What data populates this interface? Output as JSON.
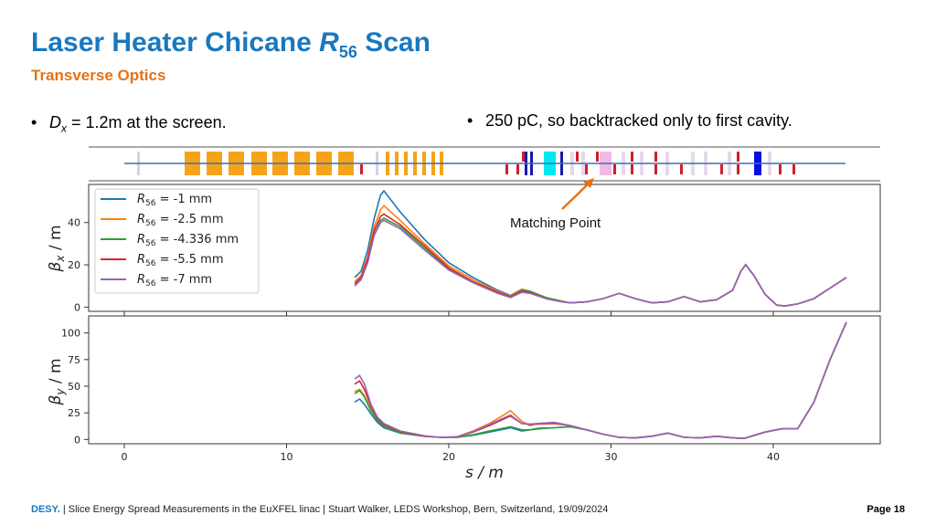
{
  "slide": {
    "title_prefix": "Laser Heater Chicane ",
    "title_var": "R",
    "title_sub": "56",
    "title_suffix": " Scan",
    "subtitle": "Transverse Optics",
    "bullet_left_var": "D",
    "bullet_left_sub": "x",
    "bullet_left_text": " = 1.2m at the screen.",
    "bullet_right_text": "250 pC, so backtracked only to first cavity.",
    "bullet_glyph": "•"
  },
  "footer": {
    "brand": "DESY.",
    "text": " | Slice Energy Spread Measurements in the EuXFEL linac | Stuart Walker, LEDS Workshop, Bern, Switzerland, 19/09/2024",
    "page": "Page 18"
  },
  "colors": {
    "title": "#1a78be",
    "subtitle": "#e2731a",
    "dipole": "#f5a41a",
    "quad_red": "#d0202a",
    "quad_blue": "#1a1aa8",
    "cavity_cyan": "#00e8f0",
    "pink": "#f2b8e6",
    "annotation_arrow": "#e2731a"
  },
  "lattice_icons": [
    "dipole-magnet-icon",
    "quadrupole-icon",
    "cavity-icon"
  ],
  "chart_data": [
    {
      "type": "line",
      "ylabel_symbol": "β",
      "ylabel_sub": "x",
      "ylabel_unit": " / m",
      "xlabel": "",
      "xlim": [
        -2.5,
        46.5
      ],
      "ylim": [
        -2,
        58
      ],
      "yticks": [
        0,
        20,
        40
      ],
      "grid": false,
      "legend_position": "top-left",
      "annotation": "Matching Point",
      "x": [
        14.2,
        14.6,
        15.0,
        15.4,
        15.8,
        16.0,
        17.0,
        18.5,
        20.0,
        21.5,
        23.0,
        23.8,
        24.5,
        25.0,
        26.0,
        27.0,
        27.5,
        28.5,
        29.5,
        30.5,
        31.5,
        32.5,
        33.5,
        34.5,
        35.5,
        36.5,
        37.5,
        38.0,
        38.3,
        38.8,
        39.5,
        40.2,
        40.7,
        41.5,
        42.5,
        43.5,
        44.5
      ],
      "series": [
        {
          "name": "-1 mm",
          "color": "#1f77b4",
          "values": [
            14,
            17,
            27,
            42,
            53,
            55,
            45,
            32,
            21,
            14,
            8,
            5.5,
            8.5,
            7.5,
            4,
            2.5,
            2,
            2.5,
            4,
            6.5,
            4,
            2,
            2.5,
            5,
            2.5,
            3.5,
            8,
            17,
            20,
            15,
            6,
            1,
            0.5,
            1.5,
            4,
            9,
            14
          ]
        },
        {
          "name": "-2.5 mm",
          "color": "#ff7f0e",
          "values": [
            12,
            15,
            24,
            38,
            46,
            48,
            41,
            30,
            19.5,
            13,
            7.5,
            5.2,
            8.5,
            7.5,
            4,
            2.5,
            2,
            2.5,
            4,
            6.5,
            4,
            2,
            2.5,
            5,
            2.5,
            3.5,
            8,
            17,
            20,
            15,
            6,
            1,
            0.5,
            1.5,
            4,
            9,
            14
          ]
        },
        {
          "name": "-4.336 mm",
          "color": "#2ca02c",
          "values": [
            11,
            14,
            22,
            34,
            41,
            42,
            38,
            28,
            18,
            12,
            7,
            5,
            8,
            7.5,
            4.5,
            2.8,
            2,
            2.5,
            4,
            6.5,
            4,
            2,
            2.5,
            5,
            2.5,
            3.5,
            8,
            17,
            20,
            15,
            6,
            1,
            0.5,
            1.5,
            4,
            9,
            14
          ]
        },
        {
          "name": "-5.5 mm",
          "color": "#d62728",
          "values": [
            11,
            14,
            23,
            36,
            43,
            44,
            39,
            29,
            18.5,
            12,
            7,
            4.8,
            7.5,
            7,
            4,
            2.5,
            2,
            2.5,
            4,
            6.5,
            4,
            2,
            2.5,
            5,
            2.5,
            3.5,
            8,
            17,
            20,
            15,
            6,
            1,
            0.5,
            1.5,
            4,
            9,
            14
          ]
        },
        {
          "name": "-7 mm",
          "color": "#9467bd",
          "values": [
            10,
            13,
            21,
            34,
            40,
            41,
            37,
            27,
            17.5,
            11.5,
            6.5,
            4.5,
            7,
            6.5,
            4,
            2.5,
            2,
            2.5,
            4,
            6.5,
            4,
            2,
            2.5,
            5,
            2.5,
            3.5,
            8,
            17,
            20,
            15,
            6,
            1,
            0.5,
            1.5,
            4,
            9,
            14
          ]
        }
      ]
    },
    {
      "type": "line",
      "ylabel_symbol": "β",
      "ylabel_sub": "y",
      "ylabel_unit": " / m",
      "xlabel": "s / m",
      "xlim": [
        -2.5,
        46.5
      ],
      "ylim": [
        -4,
        116
      ],
      "yticks": [
        0,
        25,
        50,
        75,
        100
      ],
      "xticks": [
        0,
        10,
        20,
        30,
        40
      ],
      "grid": false,
      "x": [
        14.2,
        14.5,
        14.8,
        15.2,
        15.6,
        16.0,
        17.0,
        18.5,
        19.5,
        20.5,
        21.5,
        22.5,
        23.5,
        23.8,
        24.5,
        25.0,
        25.5,
        26.5,
        27.5,
        28.5,
        29.5,
        30.5,
        31.5,
        32.5,
        33.5,
        34.5,
        35.5,
        36.5,
        37.5,
        38.2,
        39.5,
        40.5,
        41.5,
        42.5,
        43.5,
        44.5
      ],
      "series": [
        {
          "name": "-1 mm",
          "color": "#1f77b4",
          "values": [
            35,
            38,
            33,
            24,
            16,
            11,
            6,
            3,
            2,
            2,
            4,
            7,
            10,
            11,
            8,
            9,
            10,
            11,
            12,
            9,
            5,
            2,
            1.5,
            3,
            6,
            2,
            1.5,
            3,
            1.5,
            1,
            7,
            10,
            10,
            35,
            75,
            110
          ]
        },
        {
          "name": "-2.5 mm",
          "color": "#ff7f0e",
          "values": [
            45,
            47,
            41,
            28,
            19,
            13,
            7,
            3,
            2,
            2.5,
            8,
            15,
            24,
            27,
            17,
            13,
            15,
            16,
            13,
            9,
            5,
            2,
            1.5,
            3,
            6,
            2,
            1.5,
            3,
            1.5,
            1,
            7,
            10,
            10,
            35,
            75,
            110
          ]
        },
        {
          "name": "-4.336 mm",
          "color": "#2ca02c",
          "values": [
            43,
            46,
            40,
            27,
            18,
            12,
            6.5,
            3,
            2,
            2,
            4.5,
            8,
            11,
            12,
            9,
            9,
            10.5,
            11,
            12,
            9,
            5,
            2,
            1.5,
            3,
            6,
            2,
            1.5,
            3,
            1.5,
            1,
            7,
            10,
            10,
            35,
            75,
            110
          ]
        },
        {
          "name": "-5.5 mm",
          "color": "#d62728",
          "values": [
            52,
            55,
            47,
            31,
            20,
            14,
            7.5,
            3,
            2,
            2.5,
            7,
            13,
            20,
            22,
            15,
            14,
            14.5,
            15,
            13,
            9,
            5,
            2,
            1.5,
            3,
            6,
            2,
            1.5,
            3,
            1.5,
            1,
            7,
            10,
            10,
            35,
            75,
            110
          ]
        },
        {
          "name": "-7 mm",
          "color": "#9467bd",
          "values": [
            57,
            60,
            52,
            33,
            21,
            15,
            8,
            3.5,
            2,
            2.5,
            7.5,
            14,
            21,
            23,
            15,
            14.5,
            15,
            16,
            13,
            9,
            5,
            2,
            1.5,
            3,
            6,
            2,
            1.5,
            3,
            1.5,
            1,
            7,
            10,
            10,
            35,
            75,
            110
          ]
        }
      ]
    }
  ]
}
